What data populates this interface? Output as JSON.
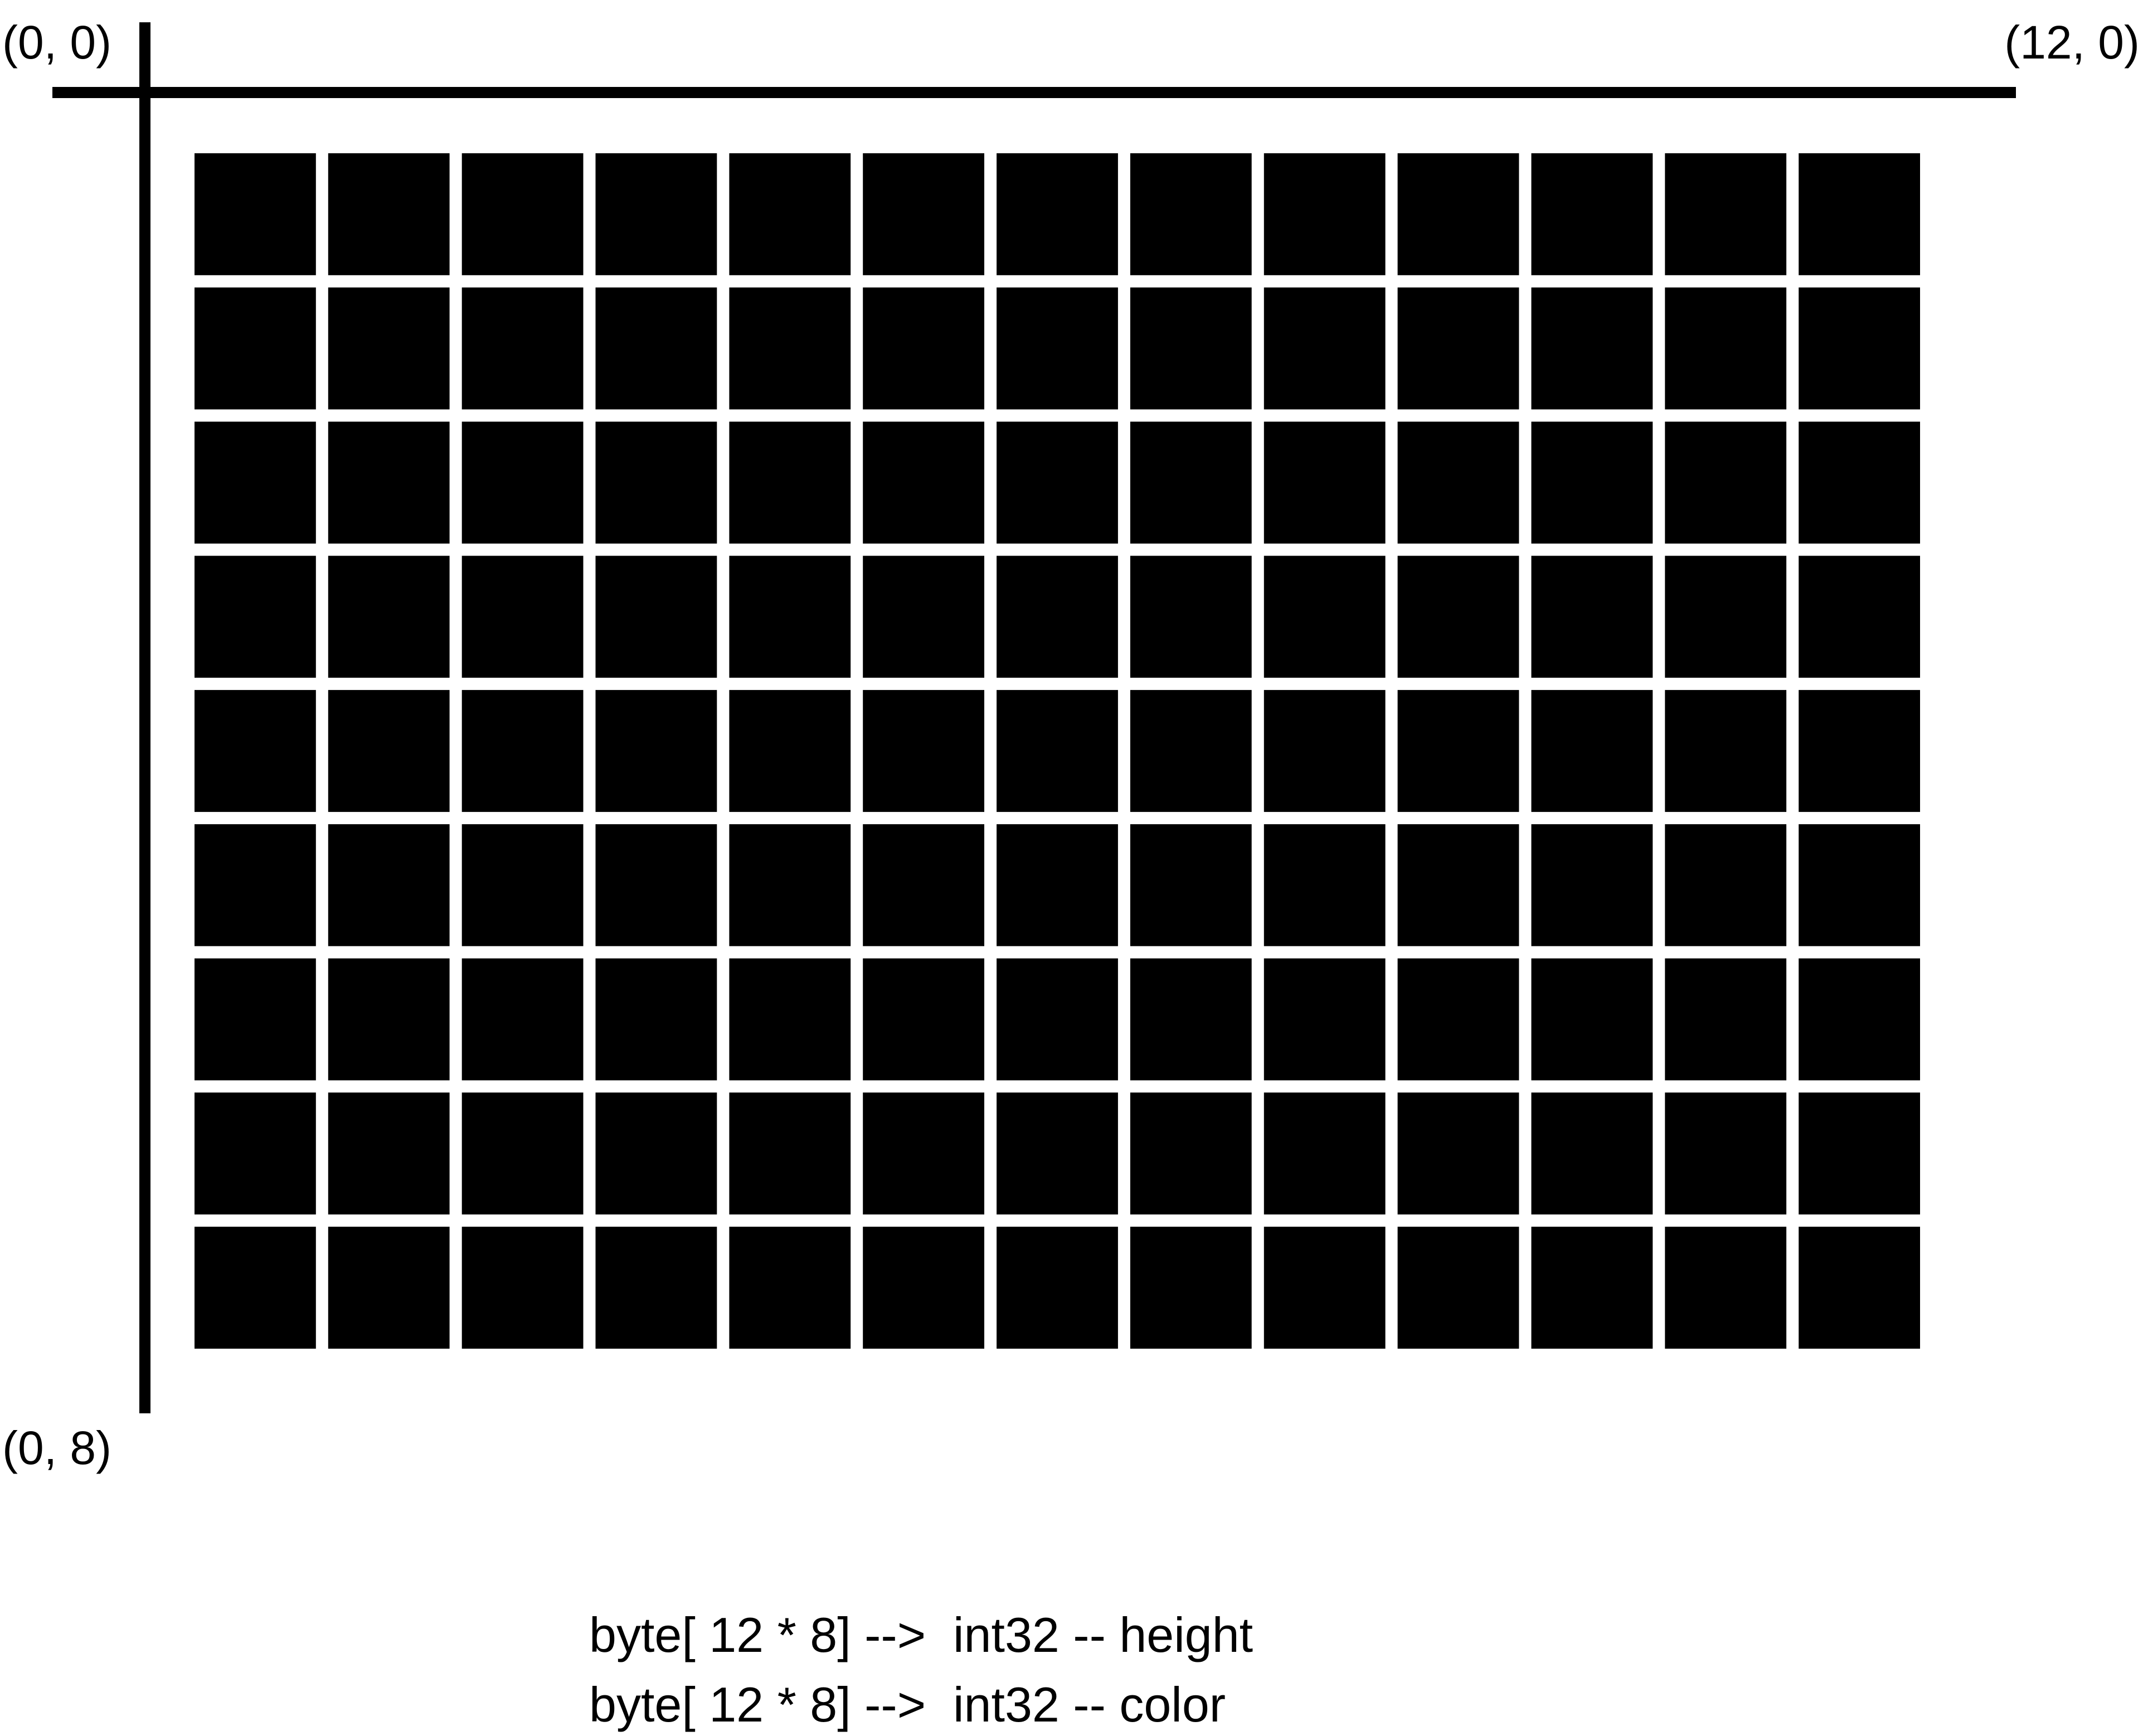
{
  "diagram": {
    "corner_labels": {
      "top_left": "(0, 0)",
      "top_right": "(12, 0)",
      "bottom_left": "(0, 8)"
    },
    "grid": {
      "columns": 13,
      "rows": 9,
      "cell_color": "#000000",
      "gap_color": "#ffffff"
    },
    "axis_color": "#000000",
    "captions": [
      "byte[ 12 * 8] -->  int32 -- height",
      "byte[ 12 * 8] -->  int32 -- color"
    ]
  }
}
